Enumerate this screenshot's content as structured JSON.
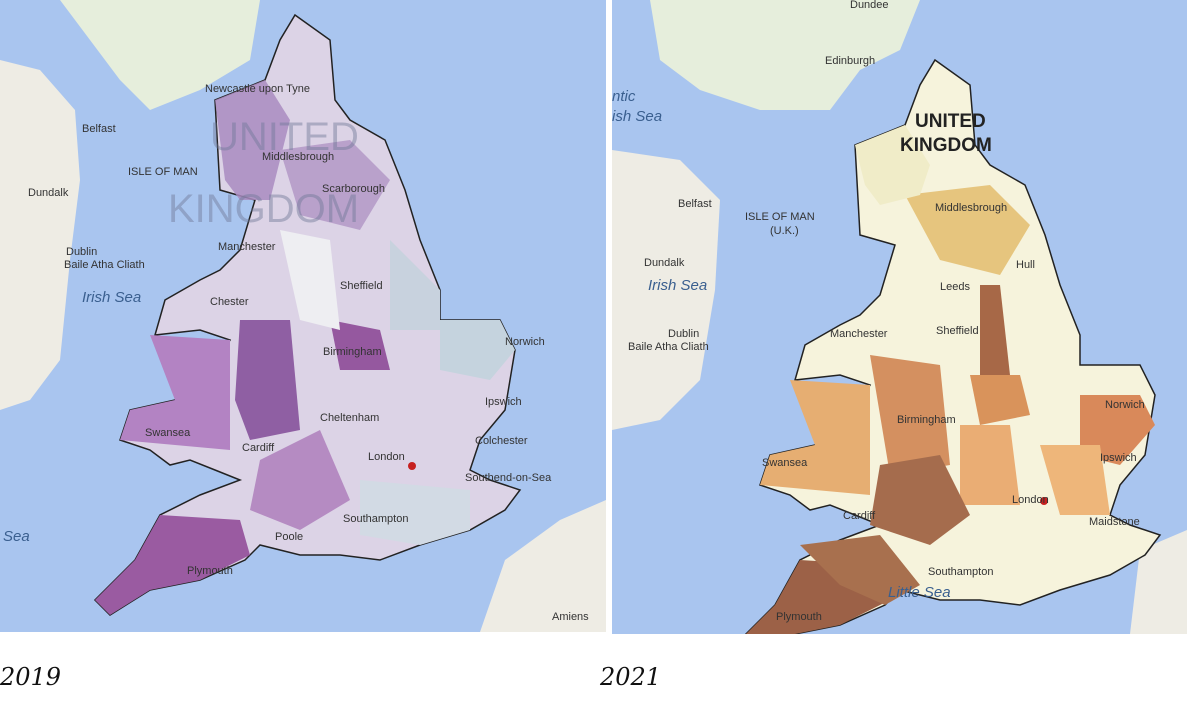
{
  "maps": [
    {
      "caption": "2019",
      "labels": [
        "Newcastle upon Tyne",
        "UNITED",
        "KINGDOM",
        "Belfast",
        "ISLE OF MAN",
        "Middlesbrough",
        "Scarborough",
        "Dundalk",
        "Dublin",
        "Baile Atha Cliath",
        "Manchester",
        "Irish Sea",
        "Chester",
        "Sheffield",
        "Birmingham",
        "Norwich",
        "Ipswich",
        "Swansea",
        "Cheltenham",
        "Colchester",
        "Cardiff",
        "London",
        "Southend-on-Sea",
        "Southampton",
        "Poole",
        "Plymouth",
        "Amiens",
        "ic Sea"
      ]
    },
    {
      "caption": "2021",
      "labels": [
        "Dundee",
        "Edinburgh",
        "ntic",
        "ish Sea",
        "UNITED",
        "KINGDOM",
        "Belfast",
        "ISLE OF MAN",
        "(U.K.)",
        "Middlesbrough",
        "Hull",
        "Leeds",
        "Dundalk",
        "Irish Sea",
        "Manchester",
        "Sheffield",
        "Dublin",
        "Baile Atha Cliath",
        "Birmingham",
        "Norwich",
        "Swansea",
        "Ipswich",
        "London",
        "Cardiff",
        "Maidstone",
        "Southampton",
        "Little Sea",
        "Plymouth"
      ]
    }
  ]
}
